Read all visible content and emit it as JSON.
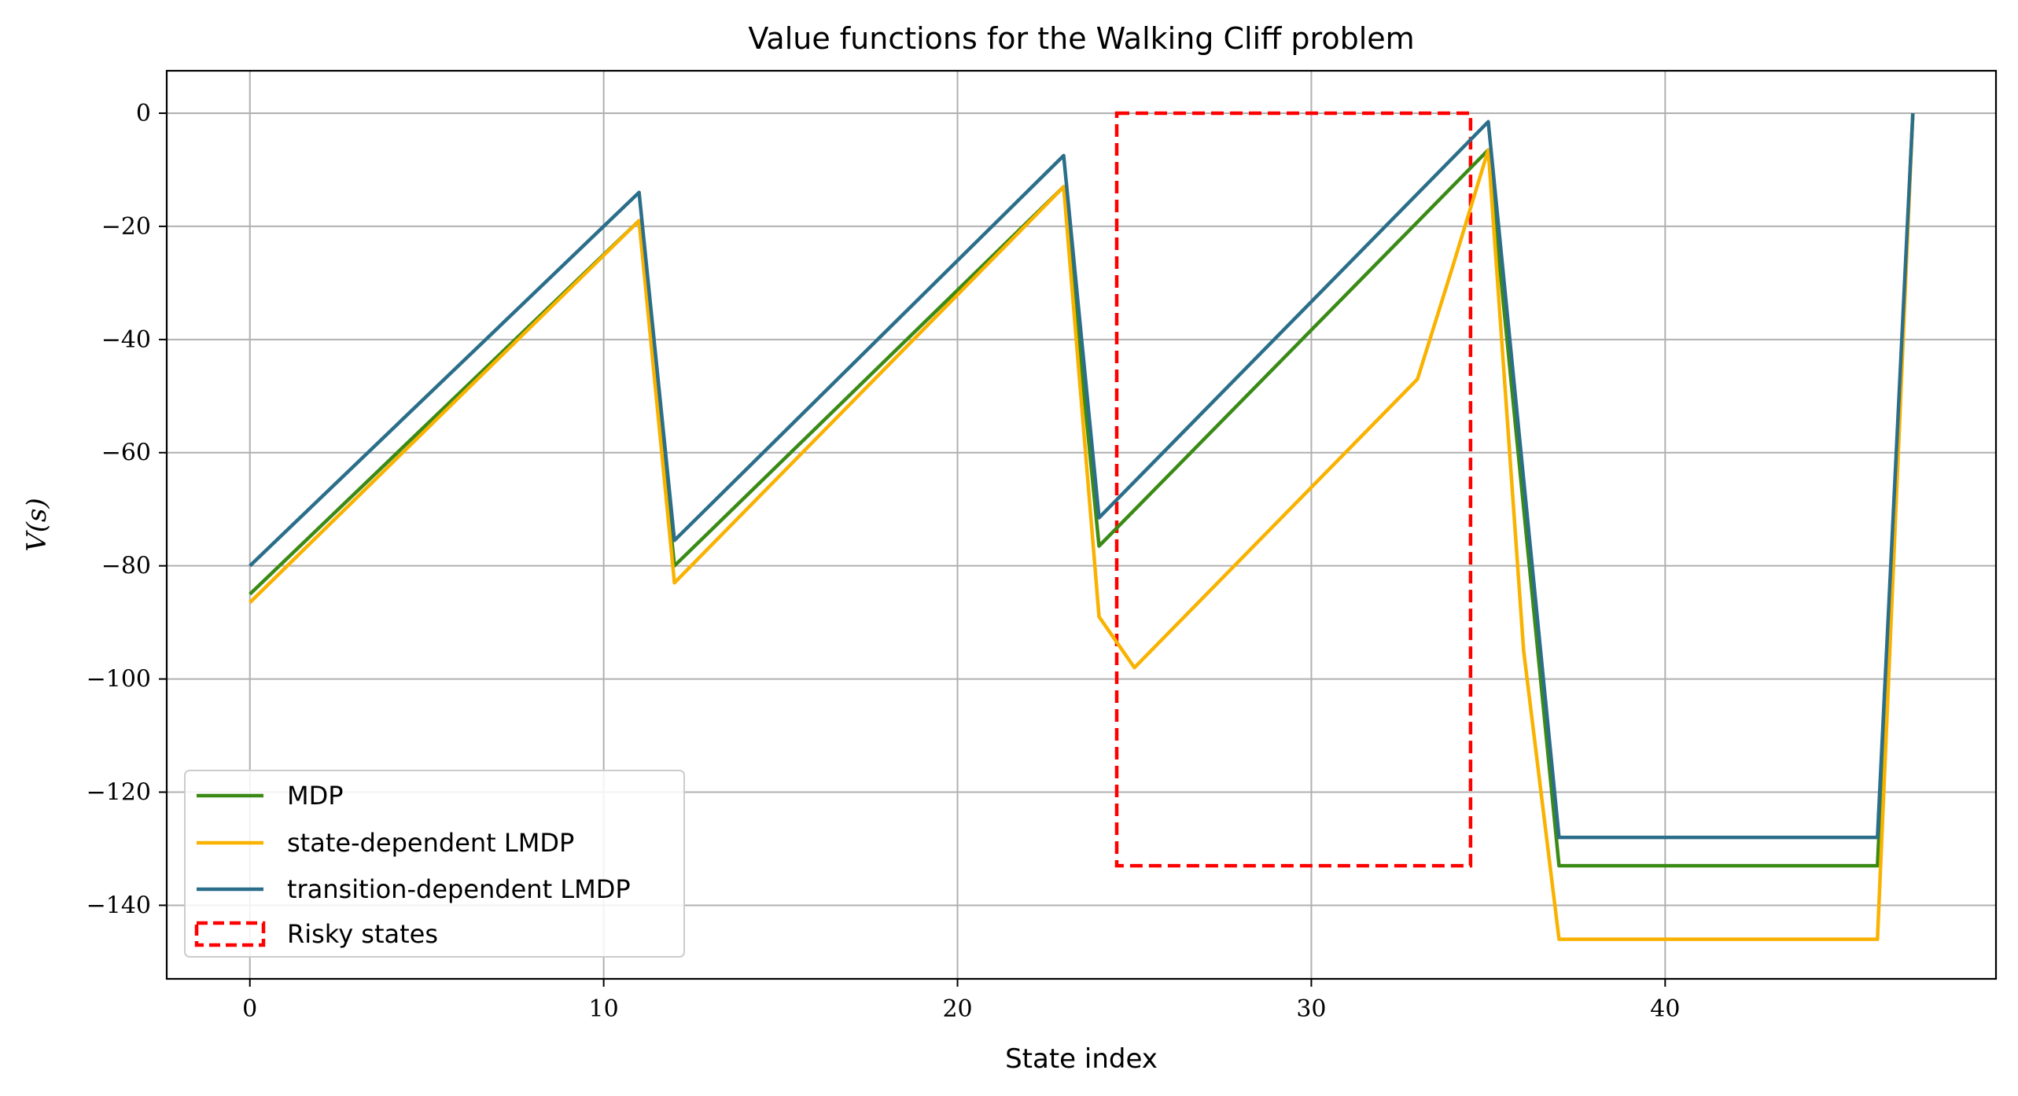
{
  "chart_data": {
    "type": "line",
    "title": "Value functions for the Walking Cliff problem",
    "xlabel": "State index",
    "ylabel": "V(s)",
    "xlim": [
      -2.35,
      49.35
    ],
    "ylim": [
      -153,
      7.5
    ],
    "xticks": [
      0,
      10,
      20,
      30,
      40
    ],
    "xtick_labels": [
      "0",
      "10",
      "20",
      "30",
      "40"
    ],
    "yticks": [
      0,
      -20,
      -40,
      -60,
      -80,
      -100,
      -120,
      -140
    ],
    "ytick_labels": [
      "0",
      "−20",
      "−40",
      "−60",
      "−80",
      "−100",
      "−120",
      "−140"
    ],
    "grid": true,
    "legend_position": "lower-left",
    "series": [
      {
        "name": "MDP",
        "color": "#3a8a16",
        "x": [
          0,
          11,
          12,
          23,
          24,
          35,
          37,
          46,
          47
        ],
        "y": [
          -85,
          -19,
          -80,
          -13,
          -76.5,
          -6.5,
          -133,
          -133,
          0
        ]
      },
      {
        "name": "state-dependent LMDP",
        "color": "#f9b200",
        "x": [
          0,
          11,
          12,
          23,
          24,
          25,
          33,
          34,
          35,
          36,
          37,
          46,
          47
        ],
        "y": [
          -86.5,
          -19,
          -83,
          -13,
          -89,
          -98,
          -47,
          -27,
          -6.5,
          -95,
          -146,
          -146,
          0
        ]
      },
      {
        "name": "transition-dependent LMDP",
        "color": "#2b6e8a",
        "x": [
          0,
          11,
          12,
          23,
          24,
          35,
          37,
          46,
          47
        ],
        "y": [
          -80,
          -14,
          -75.5,
          -7.5,
          -71.5,
          -1.5,
          -128,
          -128,
          0
        ]
      }
    ],
    "regions": [
      {
        "name": "Risky states",
        "color": "#ff0000",
        "style": "dashed",
        "x0": 24.5,
        "x1": 34.5,
        "y0": -133,
        "y1": 0
      }
    ]
  }
}
